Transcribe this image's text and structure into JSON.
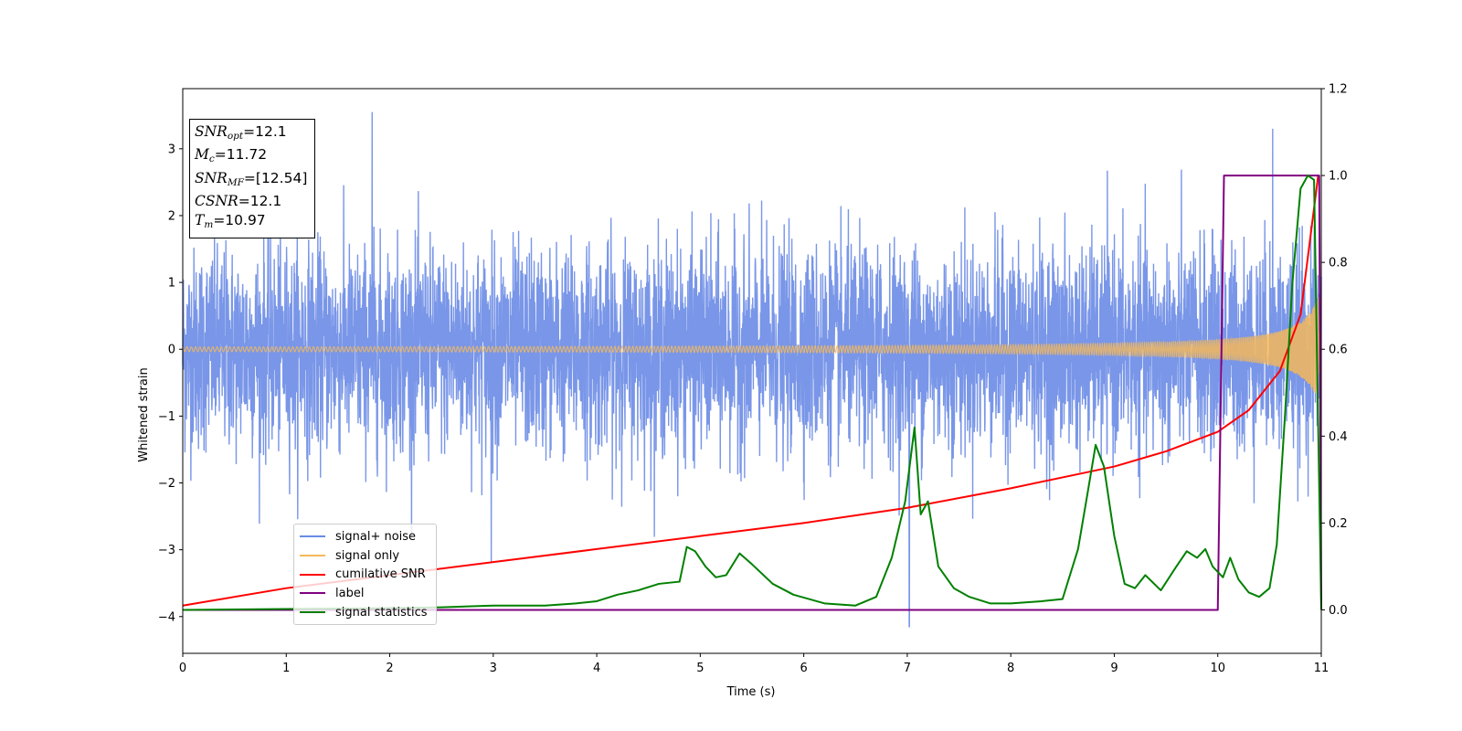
{
  "chart_data": {
    "type": "line",
    "xlabel": "Time (s)",
    "ylabel": "Whitened strain",
    "xlim": [
      0,
      11
    ],
    "ylim": [
      -4.55,
      3.9
    ],
    "y2lim": [
      -0.1,
      1.2
    ],
    "xticks": [
      "0",
      "1",
      "2",
      "3",
      "4",
      "5",
      "6",
      "7",
      "8",
      "9",
      "10",
      "11"
    ],
    "yticks": [
      "3",
      "2",
      "1",
      "0",
      "−1",
      "−2",
      "−3",
      "−4"
    ],
    "y2ticks": [
      "1.2",
      "1.0",
      "0.8",
      "0.6",
      "0.4",
      "0.2",
      "0.0"
    ],
    "grid": false,
    "legend_position": "lower-left",
    "annotation": {
      "snr_opt_label": "SNR",
      "snr_opt_sub": "opt",
      "snr_opt_value": "=12.1",
      "mc_label": "M",
      "mc_sub": "c",
      "mc_value": "=11.72",
      "snr_mf_label": "SNR",
      "snr_mf_sub": "MF",
      "snr_mf_value": "=[12.54]",
      "csnr_label": "CSNR",
      "csnr_value": "=12.1",
      "tm_label": "T",
      "tm_sub": "m",
      "tm_value": "=10.97"
    },
    "series": [
      {
        "name": "signal+ noise",
        "axis": "left",
        "color": "#6a8be6",
        "description_values": {
          "noise_sigma": 0.75,
          "peaks": [
            [
              1.83,
              3.55
            ],
            [
              7.02,
              -4.15
            ],
            [
              2.98,
              -3.2
            ],
            [
              10.53,
              3.3
            ]
          ]
        }
      },
      {
        "name": "signal only",
        "axis": "left",
        "color": "#f5b95a",
        "amplitude_start": 0.02,
        "amplitude_end": 0.8,
        "merger_time": 10.97
      },
      {
        "name": "cumilative SNR",
        "axis": "right",
        "color": "#ff0000",
        "x": [
          0,
          1,
          2,
          3,
          4,
          5,
          6,
          7,
          8,
          9,
          9.5,
          10,
          10.3,
          10.6,
          10.8,
          10.97
        ],
        "y": [
          0.01,
          0.05,
          0.08,
          0.11,
          0.14,
          0.17,
          0.2,
          0.235,
          0.28,
          0.33,
          0.365,
          0.41,
          0.46,
          0.55,
          0.68,
          1.0
        ]
      },
      {
        "name": "label",
        "axis": "right",
        "color": "#800080",
        "x": [
          0,
          10,
          10.06,
          10.97,
          10.98,
          11.0
        ],
        "y": [
          0.0,
          0.0,
          1.0,
          1.0,
          1.0,
          0.0
        ]
      },
      {
        "name": "signal statistics",
        "axis": "right",
        "color": "#008000",
        "x": [
          0,
          1,
          2,
          2.5,
          3,
          3.5,
          3.8,
          4.0,
          4.2,
          4.4,
          4.6,
          4.8,
          4.87,
          4.95,
          5.05,
          5.15,
          5.25,
          5.38,
          5.5,
          5.7,
          5.9,
          6.2,
          6.5,
          6.7,
          6.85,
          6.98,
          7.07,
          7.13,
          7.2,
          7.3,
          7.45,
          7.6,
          7.8,
          8.0,
          8.3,
          8.5,
          8.65,
          8.75,
          8.82,
          8.9,
          9.0,
          9.1,
          9.2,
          9.3,
          9.45,
          9.6,
          9.7,
          9.8,
          9.88,
          9.95,
          10.05,
          10.12,
          10.2,
          10.3,
          10.4,
          10.5,
          10.57,
          10.65,
          10.72,
          10.8,
          10.87,
          10.93,
          11.0
        ],
        "y": [
          0.0,
          0.002,
          0.004,
          0.006,
          0.01,
          0.01,
          0.015,
          0.02,
          0.035,
          0.045,
          0.06,
          0.065,
          0.145,
          0.135,
          0.1,
          0.075,
          0.08,
          0.13,
          0.105,
          0.06,
          0.035,
          0.015,
          0.01,
          0.03,
          0.12,
          0.25,
          0.42,
          0.22,
          0.25,
          0.1,
          0.05,
          0.03,
          0.015,
          0.015,
          0.02,
          0.025,
          0.14,
          0.28,
          0.38,
          0.33,
          0.17,
          0.06,
          0.05,
          0.08,
          0.045,
          0.1,
          0.135,
          0.12,
          0.14,
          0.1,
          0.075,
          0.12,
          0.07,
          0.04,
          0.03,
          0.05,
          0.15,
          0.45,
          0.75,
          0.97,
          1.0,
          0.99,
          0.0
        ]
      }
    ]
  }
}
